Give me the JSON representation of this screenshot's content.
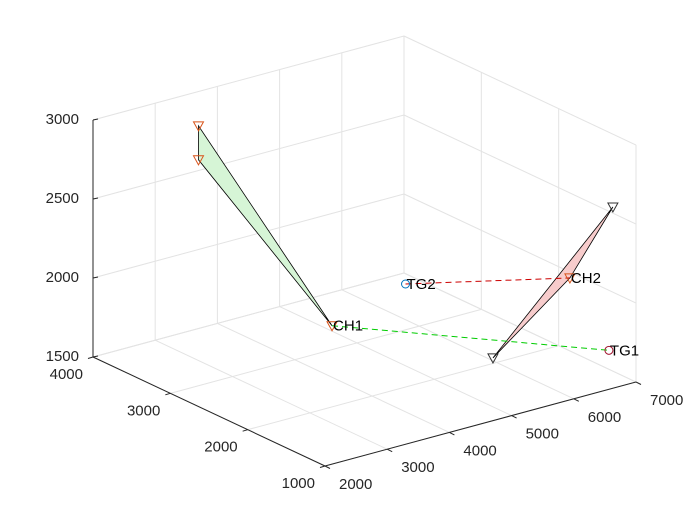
{
  "chart_data": {
    "type": "scatter3",
    "xlim": [
      2000,
      7000
    ],
    "ylim": [
      1000,
      4000
    ],
    "zlim": [
      1500,
      3000
    ],
    "xticks": [
      2000,
      3000,
      4000,
      5000,
      6000,
      7000
    ],
    "yticks": [
      1000,
      2000,
      3000,
      4000
    ],
    "zticks": [
      1500,
      2000,
      2500,
      3000
    ],
    "grid": true,
    "labeled_points": {
      "labels": [
        "CH1",
        "CH2",
        "TG1",
        "TG2"
      ],
      "x": [
        4090,
        6870,
        7000,
        5060
      ],
      "y": [
        2590,
        1750,
        1350,
        2420
      ],
      "z": [
        1800,
        2000,
        1620,
        2000
      ],
      "colors": [
        "#d95319",
        "#d95319",
        "#a2142f",
        "#0072bd"
      ]
    },
    "polygons": [
      {
        "color": "#d6f5d6",
        "marker_color": "#d95319",
        "x": [
          4090,
          2950,
          2950
        ],
        "y": [
          2590,
          3400,
          3400
        ],
        "z": [
          1800,
          3000,
          2785
        ]
      },
      {
        "color": "#f7cccc",
        "marker_color": "#333333",
        "x": [
          6870,
          6790,
          5720
        ],
        "y": [
          1750,
          1130,
          1820
        ],
        "z": [
          2000,
          2600,
          1600
        ]
      }
    ],
    "links": [
      {
        "color": "#cc0000",
        "x": [
          5060,
          6870
        ],
        "y": [
          2420,
          1750
        ],
        "z": [
          2000,
          2000
        ]
      },
      {
        "color": "#00cc00",
        "x": [
          4090,
          7000
        ],
        "y": [
          2590,
          1350
        ],
        "z": [
          1800,
          1620
        ]
      }
    ]
  }
}
